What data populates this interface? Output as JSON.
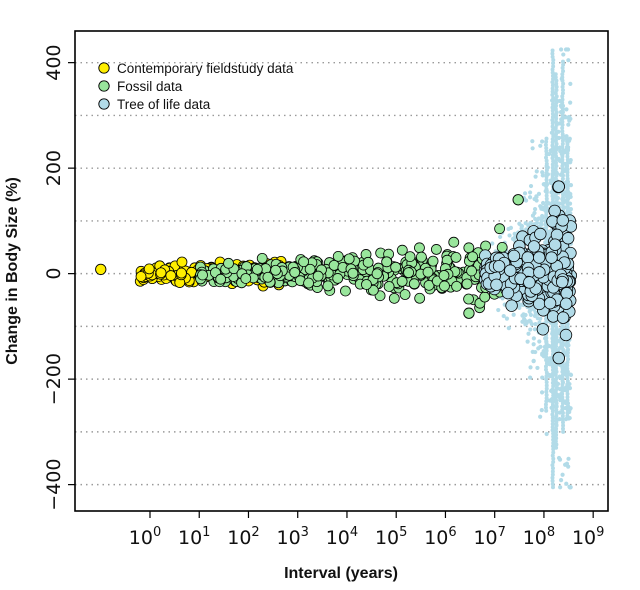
{
  "chart_data": {
    "type": "scatter",
    "xlabel": "Interval (years)",
    "ylabel": "Change in Body Size (%)",
    "x_scale": "log10",
    "xlim": [
      0.03,
      2000000000
    ],
    "ylim": [
      -450,
      460
    ],
    "x_ticks": [
      {
        "base": "10",
        "exp": "0",
        "value": 1
      },
      {
        "base": "10",
        "exp": "1",
        "value": 10
      },
      {
        "base": "10",
        "exp": "2",
        "value": 100
      },
      {
        "base": "10",
        "exp": "3",
        "value": 1000
      },
      {
        "base": "10",
        "exp": "4",
        "value": 10000
      },
      {
        "base": "10",
        "exp": "5",
        "value": 100000
      },
      {
        "base": "10",
        "exp": "6",
        "value": 1000000
      },
      {
        "base": "10",
        "exp": "7",
        "value": 10000000
      },
      {
        "base": "10",
        "exp": "8",
        "value": 100000000
      },
      {
        "base": "10",
        "exp": "9",
        "value": 1000000000
      }
    ],
    "y_ticks": [
      {
        "label": "400",
        "value": 400
      },
      {
        "label": "200",
        "value": 200
      },
      {
        "label": "0",
        "value": 0
      },
      {
        "label": "−200",
        "value": -200
      },
      {
        "label": "−400",
        "value": -400
      }
    ],
    "gridlines_y": [
      400,
      300,
      200,
      100,
      0,
      -100,
      -200,
      -300,
      -400
    ],
    "grid": "horizontal dotted",
    "legend_position": "top-left",
    "series": [
      {
        "name": "Contemporary fieldstudy data",
        "color": "#ffee00",
        "log_x_range": [
          -0.2,
          2.7
        ],
        "y_spread_start": 12,
        "y_spread_end": 18,
        "n_points": 240,
        "highlight_points": [
          {
            "x": 0.1,
            "y": 8
          }
        ]
      },
      {
        "name": "Fossil data",
        "color": "#99e69c",
        "log_x_range": [
          1.0,
          7.2
        ],
        "y_spread_start": 15,
        "y_spread_end": 60,
        "n_points": 380,
        "highlight_points": [
          {
            "x": 30000000,
            "y": 140
          },
          {
            "x": 3000000,
            "y": -75
          }
        ]
      },
      {
        "name": "Tree of life data",
        "color": "#b2dbe8",
        "log_x_range": [
          6.8,
          8.55
        ],
        "y_spread_start": 30,
        "y_spread_end": 110,
        "n_points": 320,
        "background_cloud": {
          "log_x_range": [
            6.9,
            8.55
          ],
          "y_extent": [
            -405,
            425
          ],
          "n_points": 900
        },
        "highlight_points": [
          {
            "x": 200000000,
            "y": 165
          },
          {
            "x": 200000000,
            "y": -160
          }
        ]
      }
    ]
  }
}
